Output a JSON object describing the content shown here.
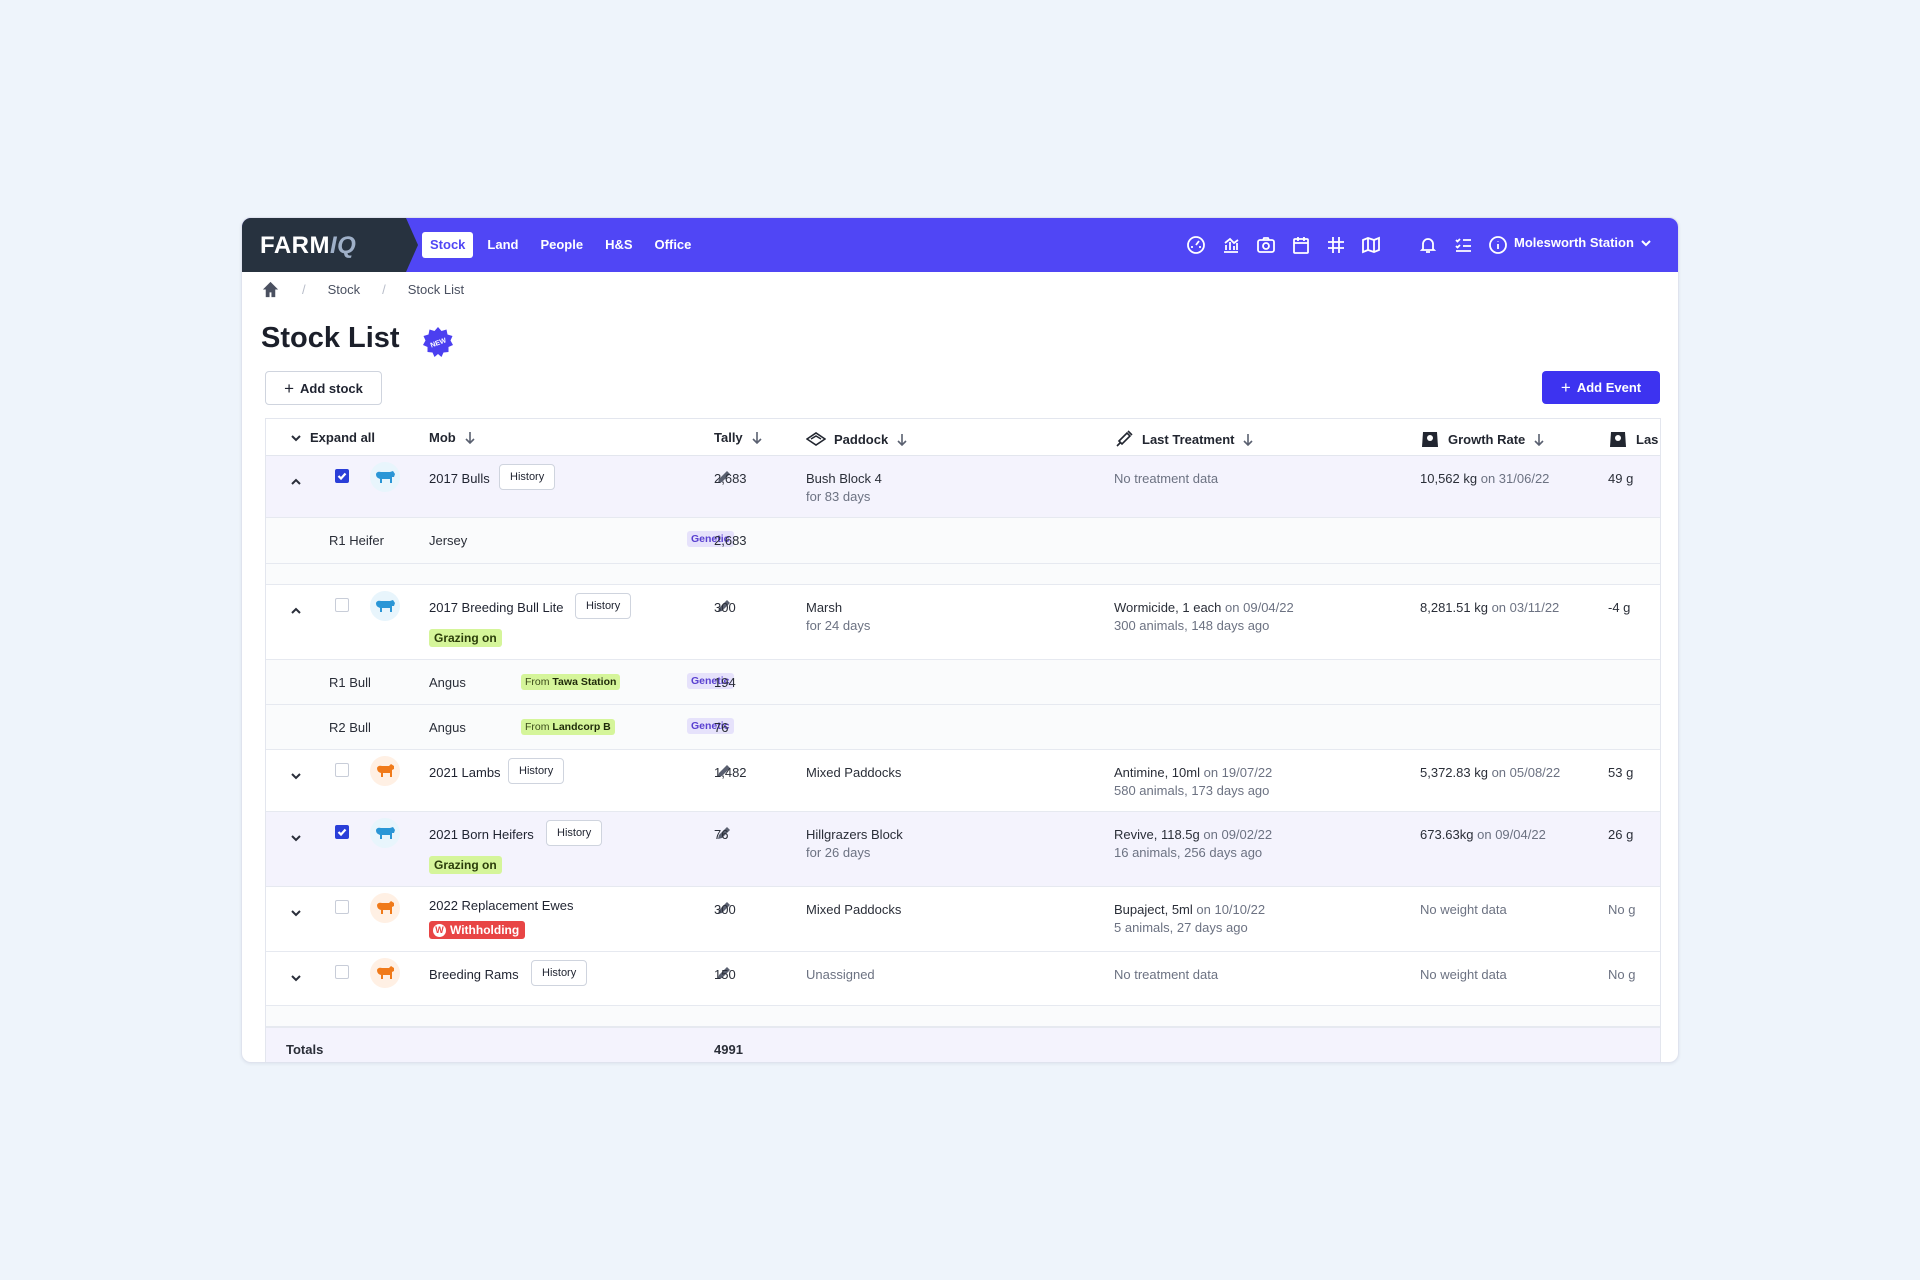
{
  "app": {
    "logo": "FARM",
    "logo_suffix": "IQ",
    "nav_tabs": [
      {
        "label": "Stock",
        "active": true
      },
      {
        "label": "Land",
        "active": false
      },
      {
        "label": "People",
        "active": false
      },
      {
        "label": "H&S",
        "active": false
      },
      {
        "label": "Office",
        "active": false
      }
    ],
    "nav_icons": [
      "gauge-icon",
      "chart-icon",
      "camera-search-icon",
      "calendar-icon",
      "grid-icon",
      "map-icon",
      "bell-icon",
      "checklist-icon",
      "info-icon"
    ],
    "station": "Molesworth Station",
    "accent_color": "#5046f5",
    "logo_bg": "#27323f"
  },
  "breadcrumb": [
    "Stock",
    "Stock List"
  ],
  "page": {
    "title": "Stock List",
    "new_badge": "NEW",
    "add_stock": "Add stock",
    "add_event": "Add Event"
  },
  "table": {
    "headers": {
      "expand_all": "Expand all",
      "mob": "Mob",
      "tally": "Tally",
      "paddock": "Paddock",
      "last_treatment": "Last Treatment",
      "growth_rate": "Growth Rate",
      "last_clipped": "Las"
    },
    "rows": [
      {
        "mob": "2017 Bulls",
        "history": "History",
        "tally": "2,683",
        "paddock": "Bush Block 4",
        "paddock_sub": "for 83 days",
        "treatment": "No treatment data",
        "treatment_sub": "",
        "growth": "10,562 kg",
        "growth_date": "on 31/06/22",
        "last": "49 g",
        "animal": "cow",
        "checked": true,
        "expanded": true
      },
      {
        "mob": "2017 Breeding Bull Lite",
        "history": "History",
        "tally": "300",
        "status": "Grazing on",
        "paddock": "Marsh",
        "paddock_sub": "for 24 days",
        "treatment": "Wormicide, 1 each",
        "treatment_date": "on 09/04/22",
        "treatment_sub": "300 animals, 148 days ago",
        "growth": "8,281.51 kg",
        "growth_date": "on 03/11/22",
        "last": "-4 g",
        "animal": "cow",
        "checked": false,
        "expanded": true
      },
      {
        "mob": "2021 Lambs",
        "history": "History",
        "tally": "1,482",
        "paddock": "Mixed Paddocks",
        "treatment": "Antimine, 10ml",
        "treatment_date": "on 19/07/22",
        "treatment_sub": "580 animals, 173 days ago",
        "growth": "5,372.83 kg",
        "growth_date": "on 05/08/22",
        "last": "53 g",
        "animal": "sheep",
        "checked": false,
        "expanded": false
      },
      {
        "mob": "2021 Born Heifers",
        "history": "History",
        "tally": "76",
        "status": "Grazing on",
        "paddock": "Hillgrazers Block",
        "paddock_sub": "for 26 days",
        "treatment": "Revive, 118.5g",
        "treatment_date": "on 09/02/22",
        "treatment_sub": "16 animals, 256 days ago",
        "growth": "673.63kg",
        "growth_date": "on 09/04/22",
        "last": "26 g",
        "animal": "cow",
        "checked": true,
        "expanded": false
      },
      {
        "mob": "2022 Replacement Ewes",
        "tally": "300",
        "status": "Withholding",
        "status_icon": "W",
        "paddock": "Mixed Paddocks",
        "treatment": "Bupaject, 5ml",
        "treatment_date": "on 10/10/22",
        "treatment_sub": "5 animals, 27 days ago",
        "growth": "No weight data",
        "last": "No g",
        "animal": "sheep",
        "checked": false,
        "expanded": false
      },
      {
        "mob": "Breeding Rams",
        "history": "History",
        "tally": "150",
        "paddock": "Unassigned",
        "treatment": "No treatment data",
        "growth": "No weight data",
        "last": "No g",
        "animal": "sheep",
        "checked": false,
        "expanded": false
      }
    ],
    "subrows": [
      {
        "class": "R1 Heifer",
        "breed": "Jersey",
        "tag": "Genetic",
        "tally": "2,683"
      },
      {
        "class": "R1 Bull",
        "breed": "Angus",
        "from_prefix": "From",
        "from": "Tawa Station",
        "tag": "Genetic",
        "tally": "194"
      },
      {
        "class": "R2 Bull",
        "breed": "Angus",
        "from_prefix": "From",
        "from": "Landcorp B",
        "tag": "Genetic",
        "tally": "76"
      }
    ],
    "totals": {
      "label": "Totals",
      "value": "4991"
    }
  }
}
